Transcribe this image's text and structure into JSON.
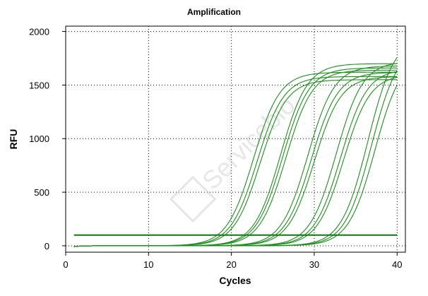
{
  "chart_data": {
    "type": "line",
    "title": "Amplification",
    "xlabel": "Cycles",
    "ylabel": "RFU",
    "xlim": [
      0,
      41
    ],
    "ylim": [
      -60,
      2050
    ],
    "xticks": [
      0,
      10,
      20,
      30,
      40
    ],
    "yticks": [
      0,
      500,
      1000,
      1500,
      2000
    ],
    "grid": true,
    "grid_style": "dotted",
    "legend": "none",
    "colors": {
      "curve": "#1f8c1f",
      "threshold": "#0a7a0a",
      "plot_border": "#000000",
      "grid": "#000000"
    },
    "watermark": "Servicebio",
    "threshold": {
      "y": 100,
      "x_start": 1,
      "x_end": 40
    },
    "x": [
      1,
      2,
      3,
      4,
      5,
      6,
      7,
      8,
      9,
      10,
      11,
      12,
      13,
      14,
      15,
      16,
      17,
      18,
      19,
      20,
      21,
      22,
      23,
      24,
      25,
      26,
      27,
      28,
      29,
      30,
      31,
      32,
      33,
      34,
      35,
      36,
      37,
      38,
      39,
      40
    ],
    "series": [
      {
        "ct": 18.3,
        "max": 1620
      },
      {
        "ct": 18.8,
        "max": 1580
      },
      {
        "ct": 19.2,
        "max": 1550
      },
      {
        "ct": 21.5,
        "max": 1700
      },
      {
        "ct": 21.8,
        "max": 1660
      },
      {
        "ct": 22.2,
        "max": 1640
      },
      {
        "ct": 24.8,
        "max": 1680
      },
      {
        "ct": 25.3,
        "max": 1620
      },
      {
        "ct": 25.7,
        "max": 1580
      },
      {
        "ct": 28.2,
        "max": 1720
      },
      {
        "ct": 28.8,
        "max": 1650
      },
      {
        "ct": 29.2,
        "max": 1600
      },
      {
        "ct": 31.8,
        "max": 1950
      },
      {
        "ct": 32.3,
        "max": 1870
      },
      {
        "ct": 32.8,
        "max": 1780
      }
    ]
  }
}
